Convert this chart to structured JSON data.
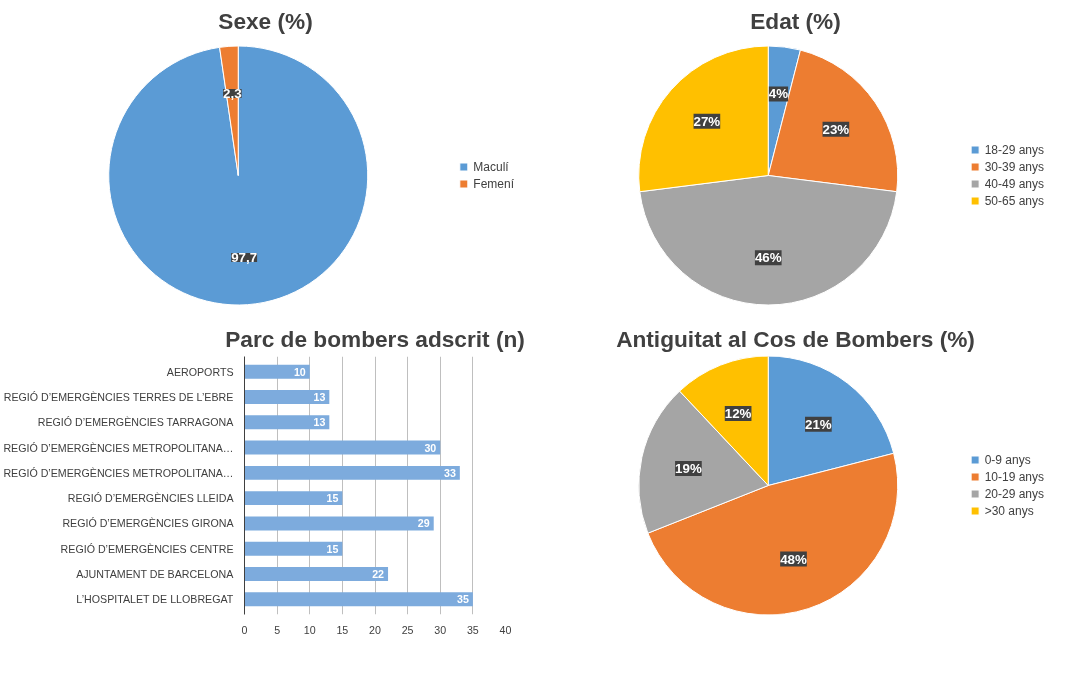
{
  "chart_data": [
    {
      "type": "pie",
      "title": "Sexe (%)",
      "categories": [
        "Maculí",
        "Femení"
      ],
      "values": [
        97.7,
        2.3
      ],
      "colors": [
        "#5b9bd5",
        "#ed7d31"
      ],
      "value_labels": [
        "97,7",
        "2,3"
      ],
      "legend": "right"
    },
    {
      "type": "pie",
      "title": "Edat (%)",
      "categories": [
        "18-29 anys",
        "30-39 anys",
        "40-49 anys",
        "50-65 anys"
      ],
      "values": [
        4,
        23,
        46,
        27
      ],
      "colors": [
        "#5b9bd5",
        "#ed7d31",
        "#a5a5a5",
        "#ffc000"
      ],
      "value_labels": [
        "4%",
        "23%",
        "46%",
        "27%"
      ],
      "legend": "right"
    },
    {
      "type": "bar",
      "orientation": "horizontal",
      "title": "Parc de bombers adscrit (n)",
      "categories": [
        "AEROPORTS",
        "REGIÓ D’EMERGÈNCIES TERRES DE L’EBRE",
        "REGIÓ D’EMERGÈNCIES TARRAGONA",
        "REGIÓ D’EMERGÈNCIES METROPOLITANA…",
        "REGIÓ D’EMERGÈNCIES METROPOLITANA…",
        "REGIÓ D’EMERGÈNCIES LLEIDA",
        "REGIÓ D’EMERGÈNCIES GIRONA",
        "REGIÓ D’EMERGÈNCIES CENTRE",
        "AJUNTAMENT DE BARCELONA",
        "L’HOSPITALET DE LLOBREGAT"
      ],
      "values": [
        10,
        13,
        13,
        30,
        33,
        15,
        29,
        15,
        22,
        35
      ],
      "color": "#7dabdd",
      "data_labels": true,
      "xlim": [
        0,
        40
      ],
      "xticks": [
        0,
        5,
        10,
        15,
        20,
        25,
        30,
        35,
        40
      ],
      "grid": "x"
    },
    {
      "type": "pie",
      "title": "Antiguitat al Cos de Bombers (%)",
      "categories": [
        "0-9 anys",
        "10-19 anys",
        "20-29 anys",
        ">30 anys"
      ],
      "values": [
        21,
        48,
        19,
        12
      ],
      "colors": [
        "#5b9bd5",
        "#ed7d31",
        "#a5a5a5",
        "#ffc000"
      ],
      "value_labels": [
        "21%",
        "48%",
        "19%",
        "12%"
      ],
      "legend": "right"
    }
  ]
}
